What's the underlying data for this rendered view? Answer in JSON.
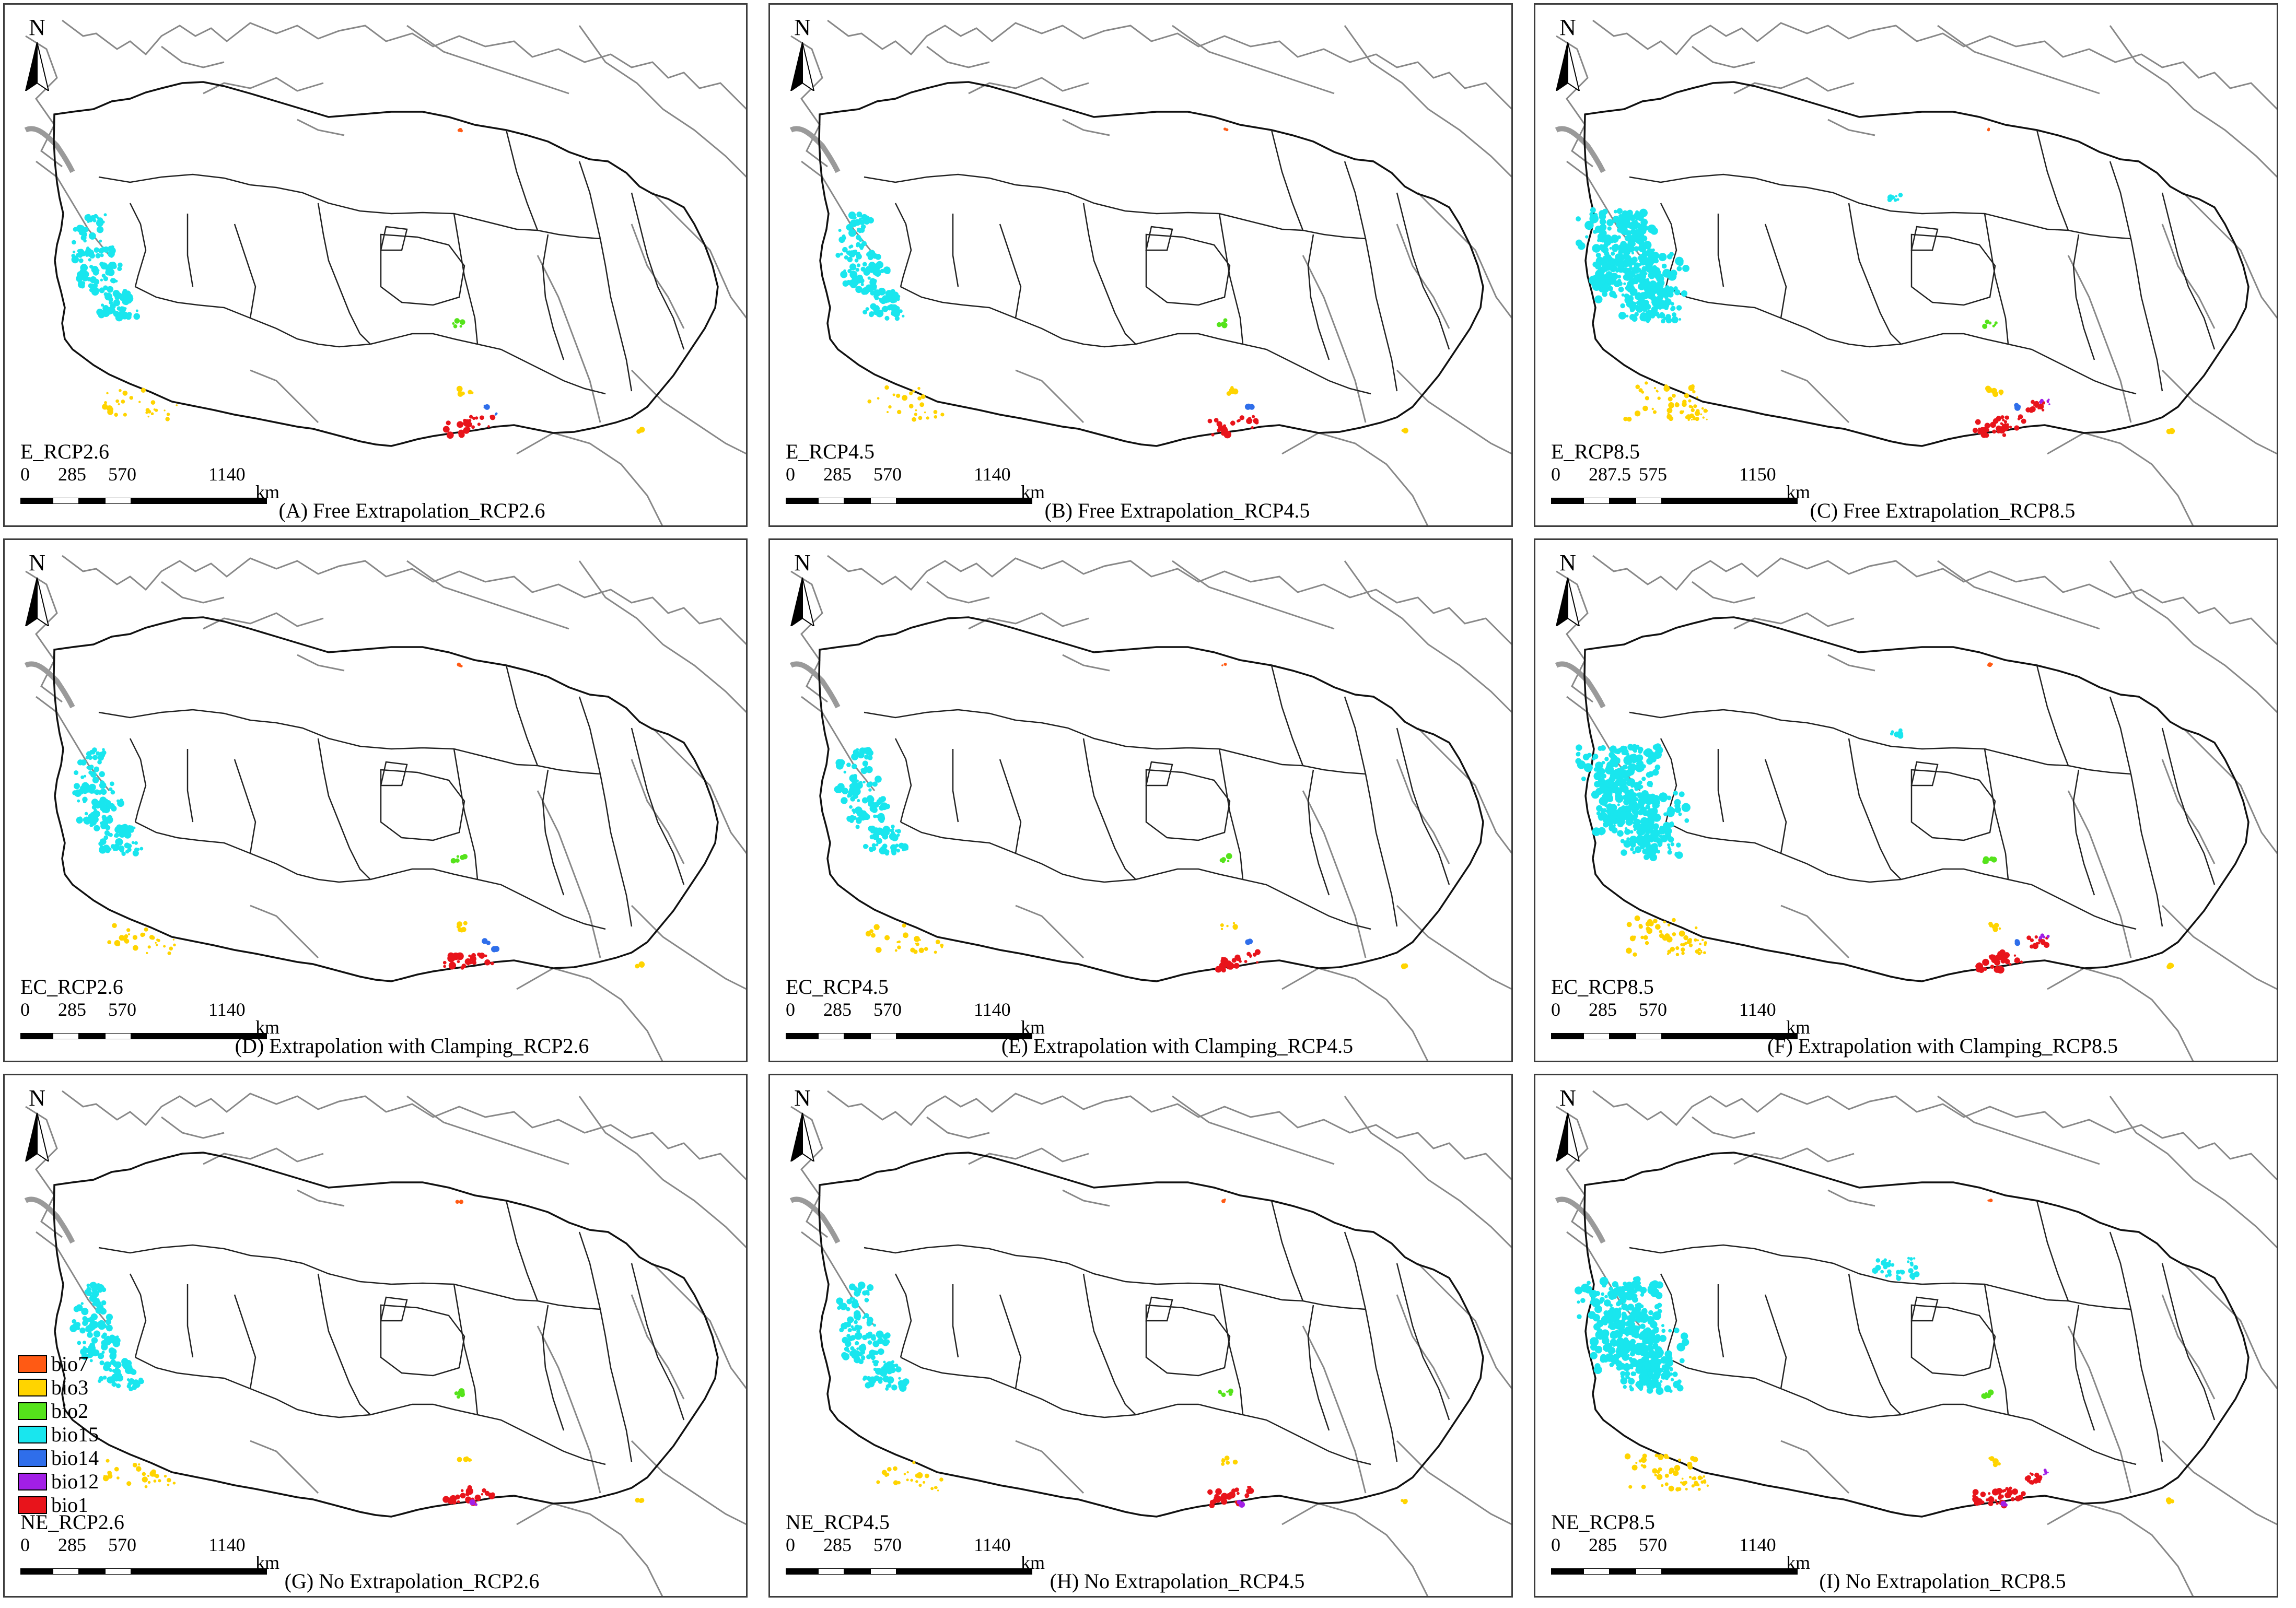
{
  "figure": {
    "north_letter": "N",
    "colors": {
      "bio7": "#ff5a14",
      "bio3": "#ffd400",
      "bio2": "#55e31b",
      "bio15": "#19e6ee",
      "bio14": "#2f6eea",
      "bio12": "#a21fe6",
      "bio1": "#e8141b"
    }
  },
  "legend": {
    "items": [
      {
        "label": "bio7",
        "color": "#ff5a14"
      },
      {
        "label": "bio3",
        "color": "#ffd400"
      },
      {
        "label": "bio2",
        "color": "#55e31b"
      },
      {
        "label": "bio15",
        "color": "#19e6ee"
      },
      {
        "label": "bio14",
        "color": "#2f6eea"
      },
      {
        "label": "bio12",
        "color": "#a21fe6"
      },
      {
        "label": "bio1",
        "color": "#e8141b"
      }
    ]
  },
  "panels": [
    {
      "id": "A",
      "scenario": "E_RCP2.6",
      "caption": "(A) Free Extrapolation_RCP2.6",
      "scale": [
        "0",
        "285",
        "570",
        "1140"
      ],
      "unit": "km"
    },
    {
      "id": "B",
      "scenario": "E_RCP4.5",
      "caption": "(B) Free Extrapolation_RCP4.5",
      "scale": [
        "0",
        "285",
        "570",
        "1140"
      ],
      "unit": "km"
    },
    {
      "id": "C",
      "scenario": "E_RCP8.5",
      "caption": "(C) Free Extrapolation_RCP8.5",
      "scale": [
        "0",
        "287.5",
        "575",
        "1150"
      ],
      "unit": "km"
    },
    {
      "id": "D",
      "scenario": "EC_RCP2.6",
      "caption": "(D) Extrapolation with Clamping_RCP2.6",
      "scale": [
        "0",
        "285",
        "570",
        "1140"
      ],
      "unit": "km"
    },
    {
      "id": "E",
      "scenario": "EC_RCP4.5",
      "caption": "(E) Extrapolation with Clamping_RCP4.5",
      "scale": [
        "0",
        "285",
        "570",
        "1140"
      ],
      "unit": "km"
    },
    {
      "id": "F",
      "scenario": "EC_RCP8.5",
      "caption": "(F) Extrapolation with Clamping_RCP8.5",
      "scale": [
        "0",
        "285",
        "570",
        "1140"
      ],
      "unit": "km"
    },
    {
      "id": "G",
      "scenario": "NE_RCP2.6",
      "caption": "(G) No Extrapolation_RCP2.6",
      "scale": [
        "0",
        "285",
        "570",
        "1140"
      ],
      "unit": "km"
    },
    {
      "id": "H",
      "scenario": "NE_RCP4.5",
      "caption": "(H) No Extrapolation_RCP4.5",
      "scale": [
        "0",
        "285",
        "570",
        "1140"
      ],
      "unit": "km"
    },
    {
      "id": "I",
      "scenario": "NE_RCP8.5",
      "caption": "(I) No Extrapolation_RCP8.5",
      "scale": [
        "0",
        "285",
        "570",
        "1140"
      ],
      "unit": "km"
    }
  ]
}
